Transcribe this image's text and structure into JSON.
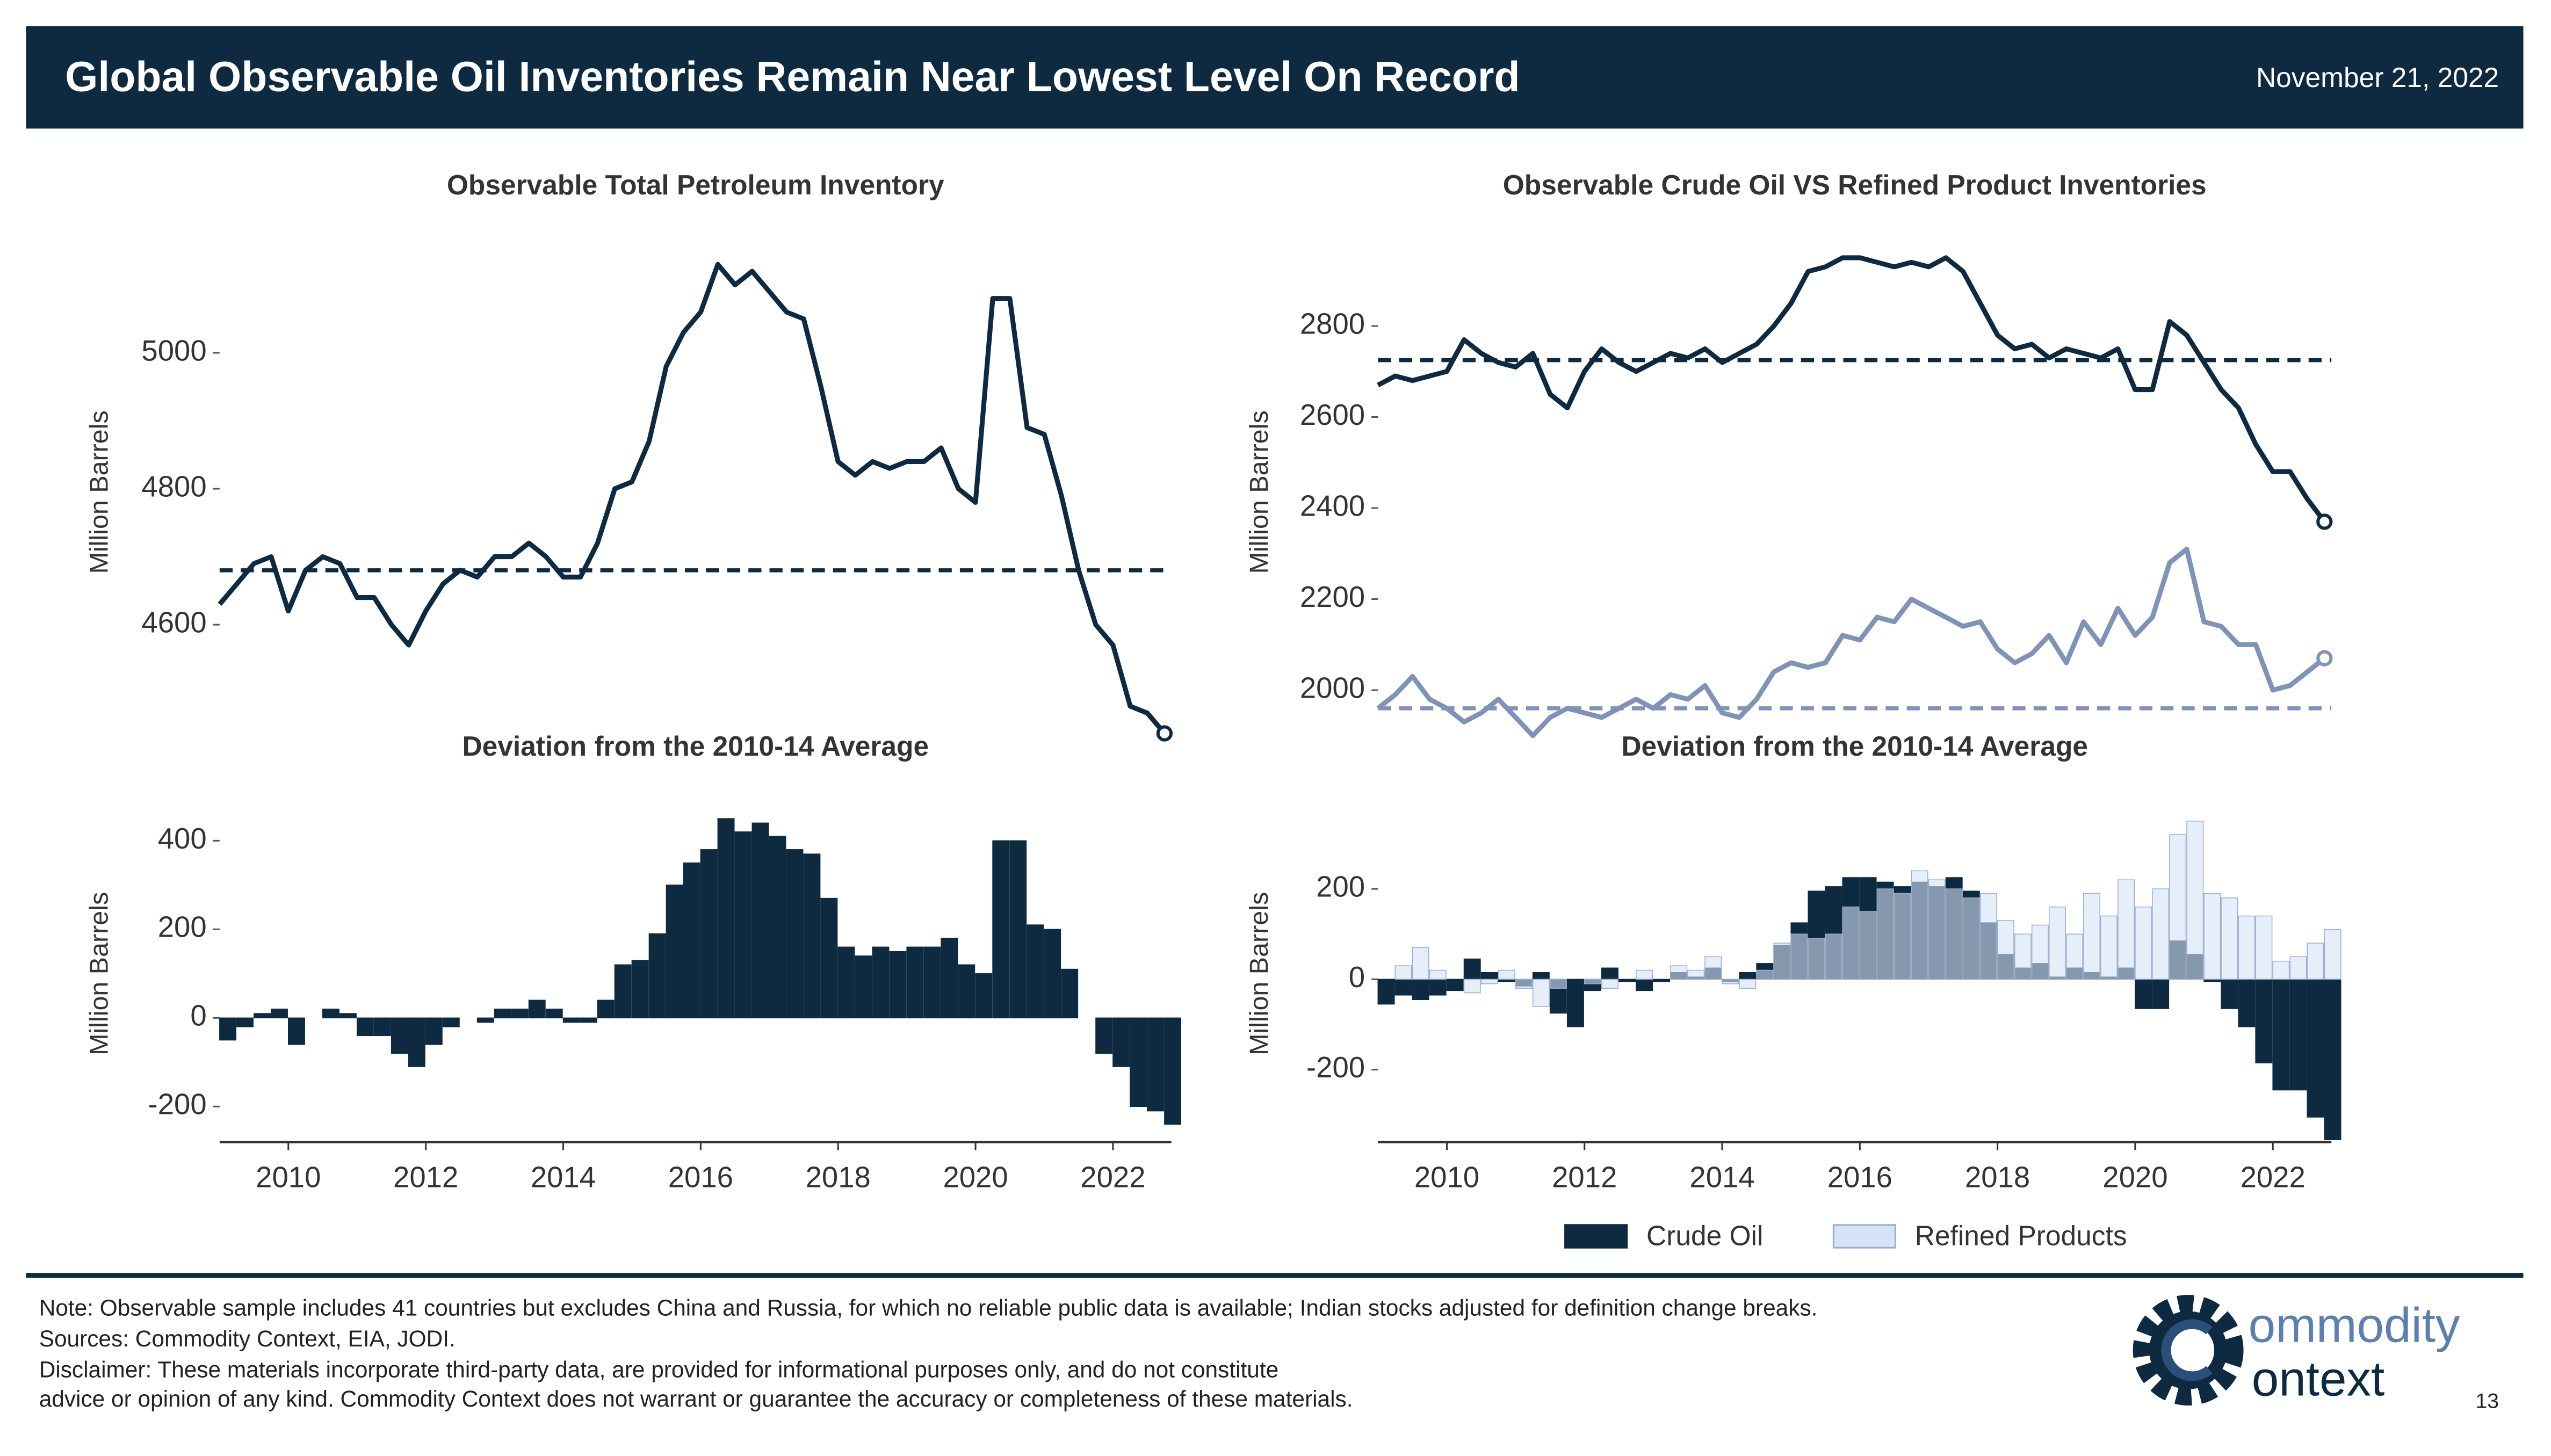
{
  "header": {
    "title": "Global Observable Oil Inventories Remain Near Lowest Level On Record",
    "date": "November 21, 2022"
  },
  "chart_data": [
    {
      "type": "line",
      "title": "Observable Total Petroleum Inventory",
      "y_label": "Million Barrels",
      "x": [
        2009,
        2009.25,
        2009.5,
        2009.75,
        2010,
        2010.25,
        2010.5,
        2010.75,
        2011,
        2011.25,
        2011.5,
        2011.75,
        2012,
        2012.25,
        2012.5,
        2012.75,
        2013,
        2013.25,
        2013.5,
        2013.75,
        2014,
        2014.25,
        2014.5,
        2014.75,
        2015,
        2015.25,
        2015.5,
        2015.75,
        2016,
        2016.25,
        2016.5,
        2016.75,
        2017,
        2017.25,
        2017.5,
        2017.75,
        2018,
        2018.25,
        2018.5,
        2018.75,
        2019,
        2019.25,
        2019.5,
        2019.75,
        2020,
        2020.25,
        2020.5,
        2020.75,
        2021,
        2021.25,
        2021.5,
        2021.75,
        2022,
        2022.25,
        2022.5,
        2022.75
      ],
      "series": [
        {
          "name": "Total Petroleum",
          "color": "#0d2a40",
          "reference": 4680,
          "values": [
            4630,
            4660,
            4690,
            4700,
            4620,
            4680,
            4700,
            4690,
            4640,
            4640,
            4600,
            4570,
            4620,
            4660,
            4680,
            4670,
            4700,
            4700,
            4720,
            4700,
            4670,
            4670,
            4720,
            4800,
            4810,
            4870,
            4980,
            5030,
            5060,
            5130,
            5100,
            5120,
            5090,
            5060,
            5050,
            4950,
            4840,
            4820,
            4840,
            4830,
            4840,
            4840,
            4860,
            4800,
            4780,
            5080,
            5080,
            4890,
            4880,
            4790,
            4680,
            4600,
            4570,
            4480,
            4470,
            4440
          ]
        }
      ],
      "xlim": [
        2009,
        2022.85
      ],
      "ylim": [
        4430,
        5160
      ],
      "yticks": [
        4600,
        4800,
        5000
      ]
    },
    {
      "type": "bar",
      "title": "Deviation from the 2010-14 Average",
      "y_label": "Million Barrels",
      "x": [
        2009,
        2009.25,
        2009.5,
        2009.75,
        2010,
        2010.25,
        2010.5,
        2010.75,
        2011,
        2011.25,
        2011.5,
        2011.75,
        2012,
        2012.25,
        2012.5,
        2012.75,
        2013,
        2013.25,
        2013.5,
        2013.75,
        2014,
        2014.25,
        2014.5,
        2014.75,
        2015,
        2015.25,
        2015.5,
        2015.75,
        2016,
        2016.25,
        2016.5,
        2016.75,
        2017,
        2017.25,
        2017.5,
        2017.75,
        2018,
        2018.25,
        2018.5,
        2018.75,
        2019,
        2019.25,
        2019.5,
        2019.75,
        2020,
        2020.25,
        2020.5,
        2020.75,
        2021,
        2021.25,
        2021.5,
        2021.75,
        2022,
        2022.25,
        2022.5,
        2022.75
      ],
      "series": [
        {
          "name": "Total Petroleum",
          "color": "#0d2a40",
          "values": [
            -50,
            -20,
            10,
            20,
            -60,
            0,
            20,
            10,
            -40,
            -40,
            -80,
            -110,
            -60,
            -20,
            0,
            -10,
            20,
            20,
            40,
            20,
            -10,
            -10,
            40,
            120,
            130,
            190,
            300,
            350,
            380,
            450,
            420,
            440,
            410,
            380,
            370,
            270,
            160,
            140,
            160,
            150,
            160,
            160,
            180,
            120,
            100,
            400,
            400,
            210,
            200,
            110,
            0,
            -80,
            -110,
            -200,
            -210,
            -240
          ]
        }
      ],
      "xlim": [
        2009,
        2022.85
      ],
      "ylim": [
        -280,
        480
      ],
      "yticks": [
        -200,
        0,
        200,
        400
      ],
      "xticks": [
        2010,
        2012,
        2014,
        2016,
        2018,
        2020,
        2022
      ]
    },
    {
      "type": "line",
      "title": "Observable Crude Oil VS Refined Product Inventories",
      "y_label": "Million Barrels",
      "x": [
        2009,
        2009.25,
        2009.5,
        2009.75,
        2010,
        2010.25,
        2010.5,
        2010.75,
        2011,
        2011.25,
        2011.5,
        2011.75,
        2012,
        2012.25,
        2012.5,
        2012.75,
        2013,
        2013.25,
        2013.5,
        2013.75,
        2014,
        2014.25,
        2014.5,
        2014.75,
        2015,
        2015.25,
        2015.5,
        2015.75,
        2016,
        2016.25,
        2016.5,
        2016.75,
        2017,
        2017.25,
        2017.5,
        2017.75,
        2018,
        2018.25,
        2018.5,
        2018.75,
        2019,
        2019.25,
        2019.5,
        2019.75,
        2020,
        2020.25,
        2020.5,
        2020.75,
        2021,
        2021.25,
        2021.5,
        2021.75,
        2022,
        2022.25,
        2022.5,
        2022.75
      ],
      "series": [
        {
          "name": "Crude Oil",
          "color": "#0d2a40",
          "reference": 2725,
          "values": [
            2670,
            2690,
            2680,
            2690,
            2700,
            2770,
            2740,
            2720,
            2710,
            2740,
            2650,
            2620,
            2700,
            2750,
            2720,
            2700,
            2720,
            2740,
            2730,
            2750,
            2720,
            2740,
            2760,
            2800,
            2850,
            2920,
            2930,
            2950,
            2950,
            2940,
            2930,
            2940,
            2930,
            2950,
            2920,
            2850,
            2780,
            2750,
            2760,
            2730,
            2750,
            2740,
            2730,
            2750,
            2660,
            2660,
            2810,
            2780,
            2720,
            2660,
            2620,
            2540,
            2480,
            2480,
            2420,
            2370
          ]
        },
        {
          "name": "Refined Products",
          "color": "#7f93b8",
          "reference": 1960,
          "values": [
            1960,
            1990,
            2030,
            1980,
            1960,
            1930,
            1950,
            1980,
            1940,
            1900,
            1940,
            1960,
            1950,
            1940,
            1960,
            1980,
            1960,
            1990,
            1980,
            2010,
            1950,
            1940,
            1980,
            2040,
            2060,
            2050,
            2060,
            2120,
            2110,
            2160,
            2150,
            2200,
            2180,
            2160,
            2140,
            2150,
            2090,
            2060,
            2080,
            2120,
            2060,
            2150,
            2100,
            2180,
            2120,
            2160,
            2280,
            2310,
            2150,
            2140,
            2100,
            2100,
            2000,
            2010,
            2040,
            2070
          ]
        }
      ],
      "xlim": [
        2009,
        2022.85
      ],
      "ylim": [
        1890,
        2980
      ],
      "yticks": [
        2000,
        2200,
        2400,
        2600,
        2800
      ]
    },
    {
      "type": "bar",
      "title": "Deviation from the 2010-14 Average",
      "y_label": "Million Barrels",
      "legend": "bottom",
      "x": [
        2009,
        2009.25,
        2009.5,
        2009.75,
        2010,
        2010.25,
        2010.5,
        2010.75,
        2011,
        2011.25,
        2011.5,
        2011.75,
        2012,
        2012.25,
        2012.5,
        2012.75,
        2013,
        2013.25,
        2013.5,
        2013.75,
        2014,
        2014.25,
        2014.5,
        2014.75,
        2015,
        2015.25,
        2015.5,
        2015.75,
        2016,
        2016.25,
        2016.5,
        2016.75,
        2017,
        2017.25,
        2017.5,
        2017.75,
        2018,
        2018.25,
        2018.5,
        2018.75,
        2019,
        2019.25,
        2019.5,
        2019.75,
        2020,
        2020.25,
        2020.5,
        2020.75,
        2021,
        2021.25,
        2021.5,
        2021.75,
        2022,
        2022.25,
        2022.5,
        2022.75
      ],
      "series": [
        {
          "name": "Crude Oil",
          "color": "#0d2a40",
          "values": [
            -55,
            -35,
            -45,
            -35,
            -25,
            45,
            15,
            -5,
            -15,
            15,
            -75,
            -105,
            -25,
            25,
            -5,
            -25,
            -5,
            15,
            5,
            25,
            -5,
            15,
            35,
            75,
            125,
            195,
            205,
            225,
            225,
            215,
            205,
            215,
            205,
            225,
            195,
            125,
            55,
            25,
            35,
            5,
            25,
            15,
            5,
            25,
            -65,
            -65,
            85,
            55,
            -5,
            -65,
            -105,
            -185,
            -245,
            -245,
            -305,
            -355
          ]
        },
        {
          "name": "Refined Products",
          "color": "#d6e2f7",
          "values": [
            0,
            30,
            70,
            20,
            0,
            -30,
            -10,
            20,
            -20,
            -60,
            -20,
            0,
            -10,
            -20,
            0,
            20,
            0,
            30,
            20,
            50,
            -10,
            -20,
            20,
            80,
            100,
            90,
            100,
            160,
            150,
            200,
            190,
            240,
            220,
            200,
            180,
            190,
            130,
            100,
            120,
            160,
            100,
            190,
            140,
            220,
            160,
            200,
            320,
            350,
            190,
            180,
            140,
            140,
            40,
            50,
            80,
            110
          ]
        }
      ],
      "xlim": [
        2009,
        2022.85
      ],
      "ylim": [
        -360,
        385
      ],
      "yticks": [
        -200,
        0,
        200
      ],
      "xticks": [
        2010,
        2012,
        2014,
        2016,
        2018,
        2020,
        2022
      ]
    }
  ],
  "footer": {
    "notes": [
      "Note: Observable sample includes 41 countries but excludes China and Russia, for which no reliable public data is available; Indian stocks adjusted for definition change breaks.",
      "Sources: Commodity Context, EIA, JODI.",
      "Disclaimer: These materials incorporate third-party data, are provided for informational purposes only, and do not constitute",
      "advice or opinion of any kind. Commodity Context does not warrant or guarantee the accuracy or completeness of these materials."
    ],
    "logo": [
      "ommodity",
      "ontext"
    ],
    "page_number": "13"
  }
}
